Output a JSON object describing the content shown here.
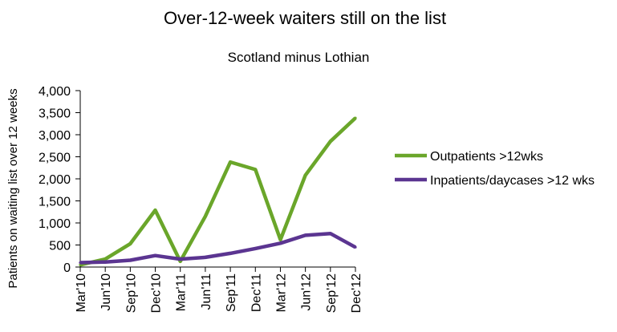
{
  "chart_data": {
    "type": "line",
    "title": "Over-12-week waiters still on the list",
    "subtitle": "Scotland minus Lothian",
    "ylabel": "Patients on waiting list over 12 weeks",
    "xlabel": "",
    "x": [
      "Mar'10",
      "Jun'10",
      "Sep'10",
      "Dec'10",
      "Mar'11",
      "Jun'11",
      "Sep'11",
      "Dec'11",
      "Mar'12",
      "Jun'12",
      "Sep'12",
      "Dec'12"
    ],
    "ylim": [
      0,
      4000
    ],
    "yticks": [
      0,
      500,
      1000,
      1500,
      2000,
      2500,
      3000,
      3500,
      4000
    ],
    "ytick_labels": [
      "0",
      "500",
      "1,000",
      "1,500",
      "2,000",
      "2,500",
      "3,000",
      "3,500",
      "4,000"
    ],
    "grid": false,
    "legend_position": "right",
    "series": [
      {
        "name": "Outpatients >12wks",
        "color": "#6aa62a",
        "values": [
          50,
          180,
          530,
          1290,
          130,
          1150,
          2380,
          2210,
          620,
          2080,
          2850,
          3380
        ]
      },
      {
        "name": "Inpatients/daycases >12 wks",
        "color": "#5b3591",
        "values": [
          100,
          115,
          155,
          260,
          180,
          220,
          310,
          420,
          540,
          720,
          760,
          450
        ]
      }
    ]
  }
}
